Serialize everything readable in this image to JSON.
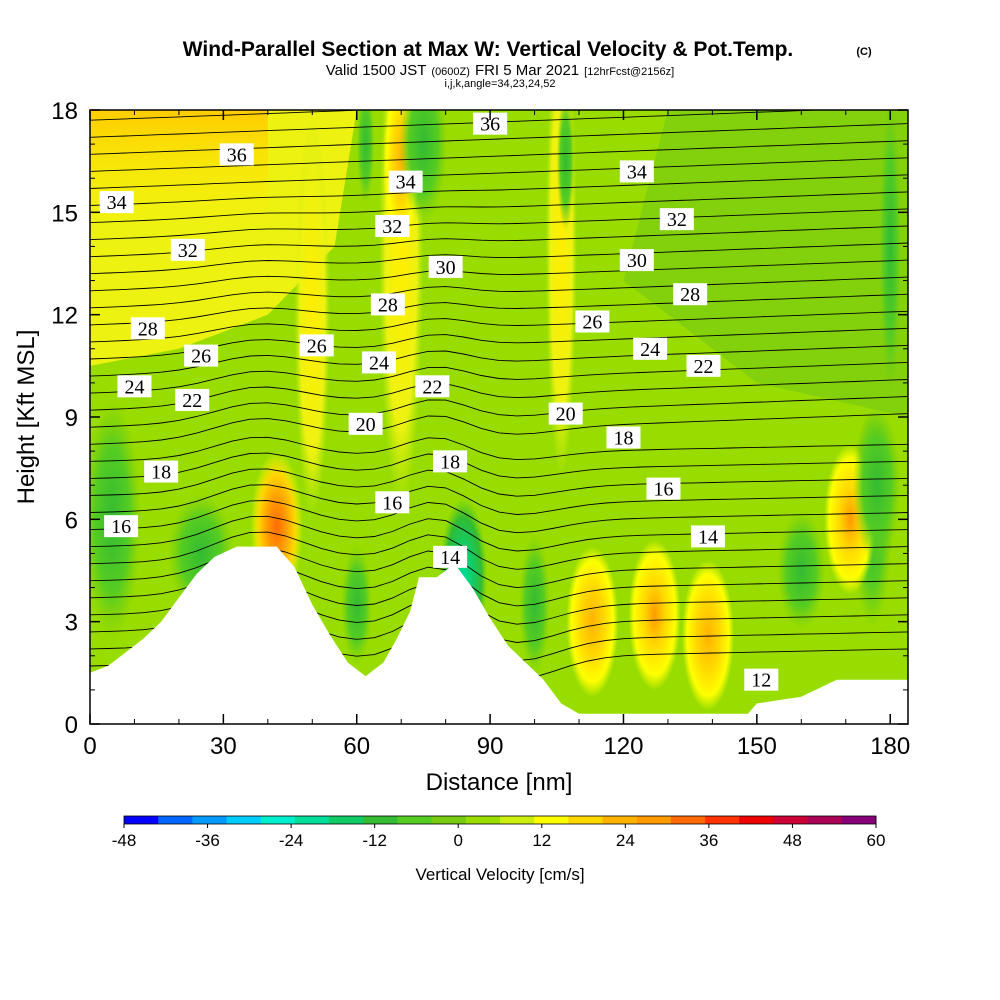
{
  "title": {
    "main": "Wind-Parallel Section at Max W: Vertical Velocity & Pot.Temp.",
    "copyright": "(C)",
    "valid_prefix": "Valid 1500 JST",
    "valid_zulu": "(0600Z)",
    "valid_date": "FRI 5 Mar 2021",
    "forecast": "[12hrFcst@2156z]",
    "params": "i,j,k,angle=34,23,24,52"
  },
  "chart_data": {
    "type": "contour-section",
    "xlabel": "Distance [nm]",
    "ylabel": "Height [Kft MSL]",
    "xlim": [
      0,
      184
    ],
    "ylim": [
      0,
      18
    ],
    "x_ticks": [
      "0",
      "30",
      "60",
      "90",
      "120",
      "150",
      "180"
    ],
    "y_ticks": [
      "0",
      "3",
      "6",
      "9",
      "12",
      "15",
      "18"
    ],
    "grid": false,
    "colorbar": {
      "label": "Vertical Velocity [cm/s]",
      "range": [
        -48,
        60
      ],
      "step": 6,
      "tick_labels": [
        "-48",
        "-36",
        "-24",
        "-12",
        "0",
        "12",
        "24",
        "36",
        "48",
        "60"
      ],
      "colors": [
        "#0000ff",
        "#0066ff",
        "#0099ff",
        "#00ccff",
        "#00eecc",
        "#00dd99",
        "#11cc66",
        "#33bb33",
        "#55cc22",
        "#77cc11",
        "#99dd00",
        "#ccee11",
        "#ffff00",
        "#ffd700",
        "#ffb300",
        "#ff9900",
        "#ff6a00",
        "#ff3300",
        "#ee0000",
        "#cc0033",
        "#aa0055",
        "#880077"
      ]
    },
    "terrain_kft": [
      [
        0,
        1.5
      ],
      [
        4,
        1.7
      ],
      [
        8,
        2.1
      ],
      [
        12,
        2.5
      ],
      [
        16,
        3.0
      ],
      [
        20,
        3.7
      ],
      [
        24,
        4.4
      ],
      [
        28,
        4.9
      ],
      [
        33,
        5.2
      ],
      [
        42,
        5.2
      ],
      [
        46,
        4.6
      ],
      [
        50,
        3.5
      ],
      [
        54,
        2.6
      ],
      [
        58,
        1.8
      ],
      [
        62,
        1.4
      ],
      [
        66,
        1.8
      ],
      [
        69,
        2.5
      ],
      [
        72,
        3.3
      ],
      [
        74,
        4.3
      ],
      [
        78,
        4.3
      ],
      [
        82,
        4.7
      ],
      [
        86,
        4.0
      ],
      [
        90,
        3.1
      ],
      [
        94,
        2.3
      ],
      [
        98,
        1.8
      ],
      [
        102,
        1.3
      ],
      [
        106,
        0.6
      ],
      [
        110,
        0.3
      ],
      [
        140,
        0.3
      ],
      [
        148,
        0.3
      ],
      [
        150,
        0.6
      ],
      [
        160,
        0.8
      ],
      [
        168,
        1.3
      ],
      [
        184,
        1.3
      ]
    ],
    "theta_labels": [
      {
        "value": "36",
        "x": 33,
        "y": 16.7
      },
      {
        "value": "36",
        "x": 90,
        "y": 17.6
      },
      {
        "value": "34",
        "x": 6,
        "y": 15.3
      },
      {
        "value": "34",
        "x": 71,
        "y": 15.9
      },
      {
        "value": "34",
        "x": 123,
        "y": 16.2
      },
      {
        "value": "32",
        "x": 22,
        "y": 13.9
      },
      {
        "value": "32",
        "x": 68,
        "y": 14.6
      },
      {
        "value": "32",
        "x": 132,
        "y": 14.8
      },
      {
        "value": "30",
        "x": 80,
        "y": 13.4
      },
      {
        "value": "30",
        "x": 123,
        "y": 13.6
      },
      {
        "value": "28",
        "x": 13,
        "y": 11.6
      },
      {
        "value": "28",
        "x": 67,
        "y": 12.3
      },
      {
        "value": "28",
        "x": 135,
        "y": 12.6
      },
      {
        "value": "26",
        "x": 25,
        "y": 10.8
      },
      {
        "value": "26",
        "x": 51,
        "y": 11.1
      },
      {
        "value": "26",
        "x": 113,
        "y": 11.8
      },
      {
        "value": "24",
        "x": 10,
        "y": 9.9
      },
      {
        "value": "24",
        "x": 65,
        "y": 10.6
      },
      {
        "value": "24",
        "x": 126,
        "y": 11.0
      },
      {
        "value": "22",
        "x": 23,
        "y": 9.5
      },
      {
        "value": "22",
        "x": 77,
        "y": 9.9
      },
      {
        "value": "22",
        "x": 138,
        "y": 10.5
      },
      {
        "value": "20",
        "x": 62,
        "y": 8.8
      },
      {
        "value": "20",
        "x": 107,
        "y": 9.1
      },
      {
        "value": "18",
        "x": 16,
        "y": 7.4
      },
      {
        "value": "18",
        "x": 81,
        "y": 7.7
      },
      {
        "value": "18",
        "x": 120,
        "y": 8.4
      },
      {
        "value": "16",
        "x": 7,
        "y": 5.8
      },
      {
        "value": "16",
        "x": 68,
        "y": 6.5
      },
      {
        "value": "16",
        "x": 129,
        "y": 6.9
      },
      {
        "value": "14",
        "x": 81,
        "y": 4.9
      },
      {
        "value": "14",
        "x": 139,
        "y": 5.5
      },
      {
        "value": "12",
        "x": 151,
        "y": 1.3
      }
    ],
    "velocity_features": [
      {
        "kind": "updraft",
        "x": 42,
        "y": 5.8,
        "max_cm_s": 30
      },
      {
        "kind": "updraft",
        "x": 113,
        "y": 3.0,
        "max_cm_s": 14
      },
      {
        "kind": "updraft",
        "x": 127,
        "y": 3.2,
        "max_cm_s": 20
      },
      {
        "kind": "updraft",
        "x": 139,
        "y": 2.6,
        "max_cm_s": 16
      },
      {
        "kind": "updraft",
        "x": 171,
        "y": 6.0,
        "max_cm_s": 20
      },
      {
        "kind": "updraft",
        "x": 70,
        "y": 16.5,
        "max_cm_s": 14
      },
      {
        "kind": "downdraft",
        "x": 84,
        "y": 4.3,
        "max_cm_s": -16
      },
      {
        "kind": "downdraft",
        "x": 75,
        "y": 17.0,
        "max_cm_s": -12
      },
      {
        "kind": "downdraft",
        "x": 177,
        "y": 7.0,
        "max_cm_s": -10
      }
    ]
  }
}
